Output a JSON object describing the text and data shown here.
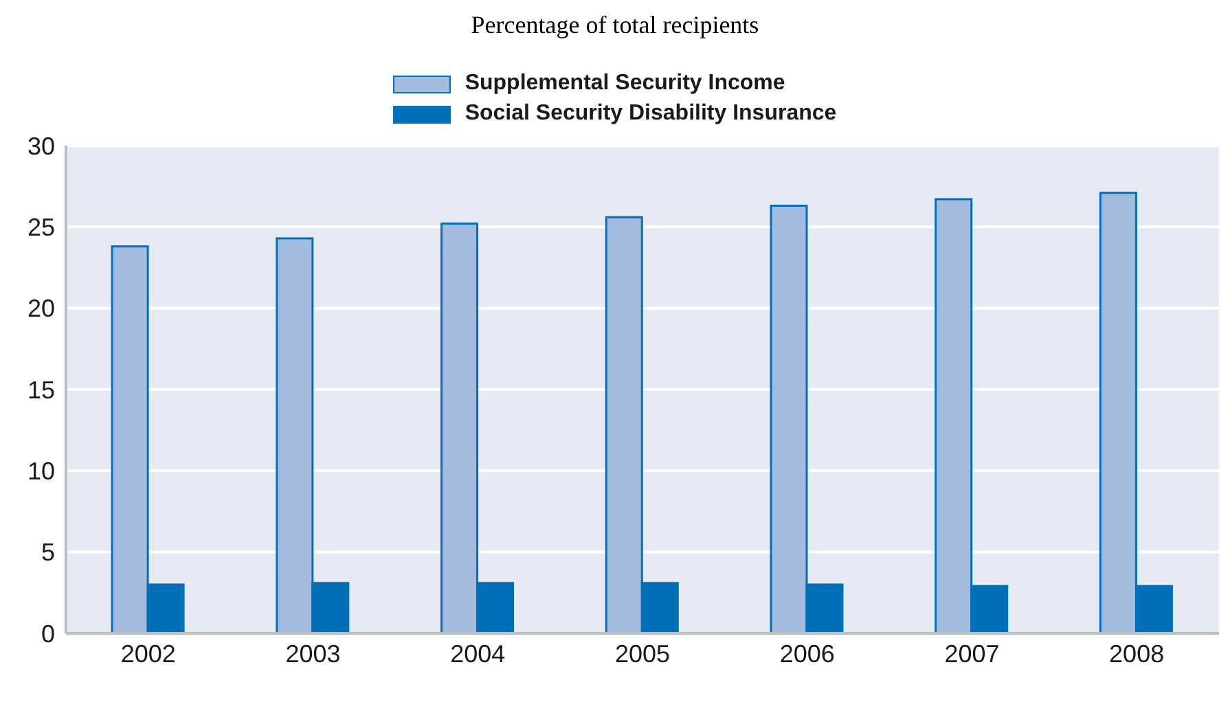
{
  "chart_data": {
    "type": "bar",
    "title": "Percentage of total recipients",
    "categories": [
      "2002",
      "2003",
      "2004",
      "2005",
      "2006",
      "2007",
      "2008"
    ],
    "series": [
      {
        "name": "Supplemental Security Income",
        "color": "#a4bbe0",
        "values": [
          23.8,
          24.3,
          25.2,
          25.6,
          26.3,
          26.7,
          27.1
        ]
      },
      {
        "name": "Social Security Disability Insurance",
        "color": "#0070bb",
        "values": [
          3.0,
          3.1,
          3.1,
          3.1,
          3.0,
          2.9,
          2.9
        ]
      }
    ],
    "ylim": [
      0,
      30
    ],
    "yticks": [
      0,
      5,
      10,
      15,
      20,
      25,
      30
    ],
    "grid": "y",
    "legend": "top"
  }
}
